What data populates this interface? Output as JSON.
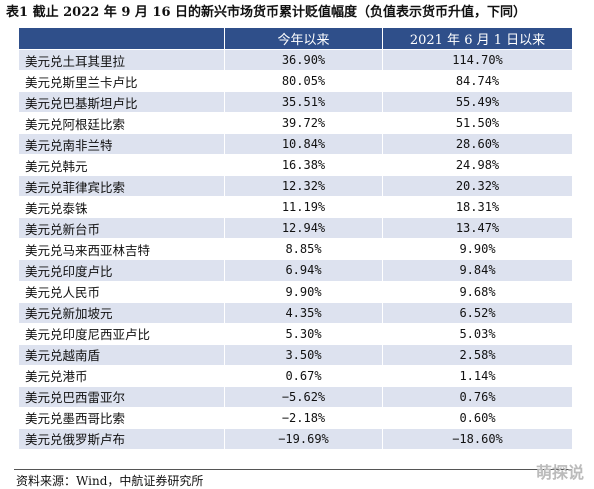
{
  "title": "表1  截止 2022 年 9 月 16 日的新兴市场货币累计贬值幅度（负值表示货币升值，下同）",
  "table": {
    "headers": [
      "",
      "今年以来",
      "2021 年 6 月 1 日以来"
    ],
    "rows": [
      {
        "name": "美元兑土耳其里拉",
        "ytd": "36.90%",
        "since": "114.70%"
      },
      {
        "name": "美元兑斯里兰卡卢比",
        "ytd": "80.05%",
        "since": "84.74%"
      },
      {
        "name": "美元兑巴基斯坦卢比",
        "ytd": "35.51%",
        "since": "55.49%"
      },
      {
        "name": "美元兑阿根廷比索",
        "ytd": "39.72%",
        "since": "51.50%"
      },
      {
        "name": "美元兑南非兰特",
        "ytd": "10.84%",
        "since": "28.60%"
      },
      {
        "name": "美元兑韩元",
        "ytd": "16.38%",
        "since": "24.98%"
      },
      {
        "name": "美元兑菲律宾比索",
        "ytd": "12.32%",
        "since": "20.32%"
      },
      {
        "name": "美元兑泰铢",
        "ytd": "11.19%",
        "since": "18.31%"
      },
      {
        "name": "美元兑新台币",
        "ytd": "12.94%",
        "since": "13.47%"
      },
      {
        "name": "美元兑马来西亚林吉特",
        "ytd": "8.85%",
        "since": "9.90%"
      },
      {
        "name": "美元兑印度卢比",
        "ytd": "6.94%",
        "since": "9.84%"
      },
      {
        "name": "美元兑人民币",
        "ytd": "9.90%",
        "since": "9.68%"
      },
      {
        "name": "美元兑新加坡元",
        "ytd": "4.35%",
        "since": "6.52%"
      },
      {
        "name": "美元兑印度尼西亚卢比",
        "ytd": "5.30%",
        "since": "5.03%"
      },
      {
        "name": "美元兑越南盾",
        "ytd": "3.50%",
        "since": "2.58%"
      },
      {
        "name": "美元兑港币",
        "ytd": "0.67%",
        "since": "1.14%"
      },
      {
        "name": "美元兑巴西雷亚尔",
        "ytd": "−5.62%",
        "since": "0.76%"
      },
      {
        "name": "美元兑墨西哥比索",
        "ytd": "−2.18%",
        "since": "0.60%"
      },
      {
        "name": "美元兑俄罗斯卢布",
        "ytd": "−19.69%",
        "since": "−18.60%"
      }
    ]
  },
  "source": "资料来源：Wind，中航证券研究所",
  "watermark": "萌探说"
}
